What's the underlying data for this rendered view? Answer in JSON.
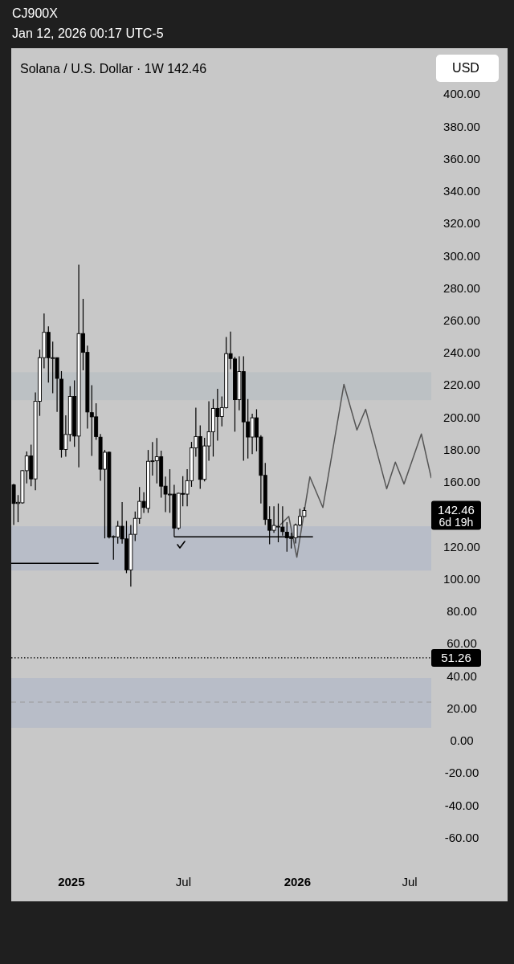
{
  "chart_data": {
    "type": "candlestick",
    "title": "Solana / U.S. Dollar · 1W  142.46",
    "annotations": [
      "CJ900X",
      "Jan 12, 2026 00:17 UTC-5",
      "USD",
      "142.46",
      "6d 19h"
    ],
    "x": [
      "2024-09-30",
      "2024-10-07",
      "2024-10-14",
      "2024-10-21",
      "2024-10-28",
      "2024-11-04",
      "2024-11-11",
      "2024-11-18",
      "2024-11-25",
      "2024-12-02",
      "2024-12-09",
      "2024-12-16",
      "2024-12-23",
      "2024-12-30",
      "2025-01-06",
      "2025-01-13",
      "2025-01-20",
      "2025-01-27",
      "2025-02-03",
      "2025-02-10",
      "2025-02-17",
      "2025-02-24",
      "2025-03-03",
      "2025-03-10",
      "2025-03-17",
      "2025-03-24",
      "2025-03-31",
      "2025-04-07",
      "2025-04-14",
      "2025-04-21",
      "2025-04-28",
      "2025-05-05",
      "2025-05-12",
      "2025-05-19",
      "2025-05-26",
      "2025-06-02",
      "2025-06-09",
      "2025-06-16",
      "2025-06-23",
      "2025-06-30",
      "2025-07-07",
      "2025-07-14",
      "2025-07-21",
      "2025-07-28",
      "2025-08-04",
      "2025-08-11",
      "2025-08-18",
      "2025-08-25",
      "2025-09-01",
      "2025-09-08",
      "2025-09-15",
      "2025-09-22",
      "2025-09-29",
      "2025-10-06",
      "2025-10-13",
      "2025-10-20",
      "2025-10-27",
      "2025-11-03",
      "2025-11-10",
      "2025-11-17",
      "2025-11-24",
      "2025-12-01",
      "2025-12-08",
      "2025-12-15",
      "2025-12-22",
      "2025-12-29",
      "2026-01-05",
      "2026-01-12"
    ],
    "ohlc": [
      [
        158.3,
        159,
        133.5,
        146.8
      ],
      [
        146.8,
        152,
        135.2,
        147.5
      ],
      [
        147.2,
        167.5,
        146.7,
        167.1
      ],
      [
        167.1,
        179,
        159.2,
        176.2
      ],
      [
        176.2,
        183.2,
        157.5,
        162
      ],
      [
        162,
        215.5,
        155,
        210
      ],
      [
        210,
        242,
        201,
        237
      ],
      [
        237,
        264.3,
        230.4,
        252.7
      ],
      [
        252.7,
        256.4,
        221.6,
        237
      ],
      [
        237,
        247,
        215,
        237
      ],
      [
        237,
        237,
        203.4,
        224.2
      ],
      [
        223.7,
        228.7,
        175.2,
        180.2
      ],
      [
        180.2,
        201.4,
        175.7,
        189.5
      ],
      [
        189.5,
        219.3,
        185.2,
        213
      ],
      [
        213,
        223,
        181.8,
        188.5
      ],
      [
        188.5,
        294.5,
        169.1,
        251.9
      ],
      [
        251.9,
        273.4,
        229.2,
        240.3
      ],
      [
        240.3,
        244.5,
        193.1,
        203.4
      ],
      [
        203,
        220,
        176.2,
        200.4
      ],
      [
        200.4,
        208.8,
        186.2,
        188.2
      ],
      [
        187.8,
        189.8,
        160.8,
        168
      ],
      [
        168,
        179.9,
        125.2,
        178.5
      ],
      [
        178.5,
        179,
        125.2,
        126
      ],
      [
        126,
        127,
        112,
        126.4
      ],
      [
        126,
        136,
        121.9,
        132.7
      ],
      [
        132.7,
        147.6,
        121.9,
        124.9
      ],
      [
        124.9,
        136,
        103.7,
        105.7
      ],
      [
        105.7,
        133.5,
        95.4,
        127.7
      ],
      [
        127.7,
        141.8,
        123.6,
        137.6
      ],
      [
        137.6,
        157,
        134.3,
        148.1
      ],
      [
        148.1,
        153.7,
        141,
        144.3
      ],
      [
        143.8,
        179.9,
        141,
        172.9
      ],
      [
        173,
        184.8,
        164.1,
        173.2
      ],
      [
        173.2,
        187.3,
        159.2,
        175.7
      ],
      [
        175.7,
        179.5,
        150.4,
        157.5
      ],
      [
        157.5,
        163.4,
        141.5,
        152.6
      ],
      [
        152.6,
        168,
        141,
        152.6
      ],
      [
        152.6,
        158.4,
        126.1,
        131.6
      ],
      [
        131.6,
        153.4,
        130.5,
        153.1
      ],
      [
        153,
        163.7,
        145.1,
        152.6
      ],
      [
        152.6,
        168,
        145.1,
        160.9
      ],
      [
        160.9,
        184.9,
        157.1,
        181.2
      ],
      [
        181.2,
        206.1,
        175.8,
        188.2
      ],
      [
        188.2,
        195.1,
        155.9,
        161.7
      ],
      [
        161.7,
        187.4,
        160.4,
        182.4
      ],
      [
        182.4,
        210,
        173.3,
        191.2
      ],
      [
        191.2,
        211.4,
        175.8,
        205.6
      ],
      [
        205.6,
        217.7,
        185.7,
        200.6
      ],
      [
        200.6,
        213,
        194.5,
        206.1
      ],
      [
        206.1,
        249.8,
        205.6,
        239.5
      ],
      [
        239.5,
        253.1,
        229.9,
        236.5
      ],
      [
        236.2,
        237.5,
        191.2,
        211
      ],
      [
        211,
        237.9,
        204.4,
        228.4
      ],
      [
        228.4,
        237.9,
        173.3,
        197.3
      ],
      [
        197.3,
        211.4,
        174.6,
        187.9
      ],
      [
        187.9,
        202.3,
        177.4,
        199.8
      ],
      [
        199.8,
        205.1,
        179.1,
        187.9
      ],
      [
        187.9,
        189,
        146.8,
        164.2
      ],
      [
        164.2,
        171.9,
        133.5,
        136.9
      ],
      [
        136.9,
        145.1,
        121.6,
        130.2
      ],
      [
        130.2,
        145.1,
        128.6,
        133.2
      ],
      [
        132.7,
        146.8,
        122.8,
        132.7
      ],
      [
        132.2,
        145.1,
        126.9,
        129.4
      ],
      [
        129,
        135.2,
        117,
        125.6
      ],
      [
        125.6,
        128.6,
        119,
        125.6
      ],
      [
        125.6,
        134.4,
        122,
        133.5
      ],
      [
        133.5,
        143.5,
        132.7,
        138.8
      ],
      [
        138.8,
        144.5,
        138.5,
        142.46
      ]
    ],
    "series": [
      {
        "type": "line",
        "color": "#555555",
        "x": [
          "2025-12-04",
          "2025-12-18",
          "2025-12-31",
          "2026-01-21",
          "2026-02-11",
          "2026-03-17",
          "2026-04-07",
          "2026-04-21",
          "2026-05-25",
          "2026-06-08",
          "2026-06-22",
          "2026-07-20",
          "2026-08-05"
        ],
        "values": [
          133.5,
          138.8,
          113.6,
          163.3,
          144.3,
          220.5,
          192.3,
          205.1,
          155.9,
          172.4,
          158.9,
          189.8,
          162.5
        ]
      },
      {
        "type": "line",
        "color": "#000000",
        "x": [
          "2025-06-16",
          "2026-01-26"
        ],
        "values": [
          126.2,
          126.2
        ]
      },
      {
        "type": "line",
        "color": "#000000",
        "x": [
          "2024-09-26",
          "2025-02-14"
        ],
        "values": [
          109.8,
          109.8
        ]
      }
    ],
    "bands": [
      {
        "axis": "y",
        "from": 210.7,
        "to": 228,
        "color": "#bcc1c4"
      },
      {
        "axis": "y",
        "from": 105.3,
        "to": 132.7,
        "color": "#b8bdc8"
      },
      {
        "axis": "y",
        "from": 8,
        "to": 38.8,
        "color": "#b8bdc8"
      }
    ],
    "ref_lines": [
      {
        "axis": "y",
        "value": 51.26,
        "label": "51.26",
        "color": "#000000",
        "line_style": "dotted"
      },
      {
        "axis": "y",
        "value": 23.9,
        "color": "#999999",
        "line_style": "dashed"
      }
    ],
    "xlim": [
      "2024-09-26",
      "2026-08-05"
    ],
    "xticks": [
      {
        "value": "2025-01-01",
        "label": "2025"
      },
      {
        "value": "2025-07-01",
        "label": "Jul"
      },
      {
        "value": "2026-01-01",
        "label": "2026"
      },
      {
        "value": "2026-07-01",
        "label": "Jul"
      }
    ],
    "ylim": [
      -77.5,
      426
    ],
    "yticks": [
      {
        "value": -60,
        "label": "-60.00"
      },
      {
        "value": -40,
        "label": "-40.00"
      },
      {
        "value": -20,
        "label": "-20.00"
      },
      {
        "value": 0,
        "label": "0.00"
      },
      {
        "value": 20,
        "label": "20.00"
      },
      {
        "value": 40,
        "label": "40.00"
      },
      {
        "value": 60,
        "label": "60.00"
      },
      {
        "value": 80,
        "label": "80.00"
      },
      {
        "value": 100,
        "label": "100.00"
      },
      {
        "value": 120,
        "label": "120.00"
      },
      {
        "value": 160,
        "label": "160.00"
      },
      {
        "value": 180,
        "label": "180.00"
      },
      {
        "value": 200,
        "label": "200.00"
      },
      {
        "value": 220,
        "label": "220.00"
      },
      {
        "value": 240,
        "label": "240.00"
      },
      {
        "value": 260,
        "label": "260.00"
      },
      {
        "value": 280,
        "label": "280.00"
      },
      {
        "value": 300,
        "label": "300.00"
      },
      {
        "value": 320,
        "label": "320.00"
      },
      {
        "value": 340,
        "label": "340.00"
      },
      {
        "value": 360,
        "label": "360.00"
      },
      {
        "value": 380,
        "label": "380.00"
      },
      {
        "value": 400,
        "label": "400.00"
      }
    ]
  }
}
